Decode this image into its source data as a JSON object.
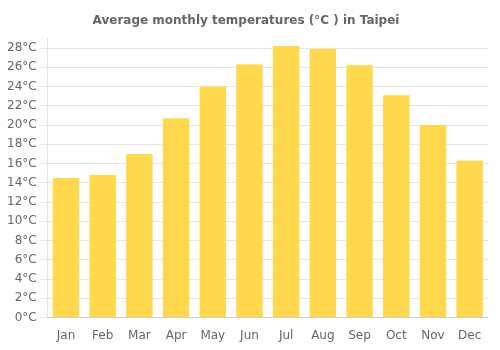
{
  "chart_data": {
    "type": "bar",
    "title": "Average monthly temperatures (°C ) in Taipei",
    "categories": [
      "Jan",
      "Feb",
      "Mar",
      "Apr",
      "May",
      "Jun",
      "Jul",
      "Aug",
      "Sep",
      "Oct",
      "Nov",
      "Dec"
    ],
    "values": [
      14.5,
      14.8,
      17.0,
      20.7,
      24.0,
      26.3,
      28.2,
      27.9,
      26.2,
      23.1,
      20.0,
      16.3
    ],
    "color": "#FFD84D",
    "ylim": [
      0,
      29
    ],
    "yticks": [
      {
        "value": 0,
        "label": "0°C"
      },
      {
        "value": 2,
        "label": "2°C"
      },
      {
        "value": 4,
        "label": "4°C"
      },
      {
        "value": 6,
        "label": "6°C"
      },
      {
        "value": 8,
        "label": "8°C"
      },
      {
        "value": 10,
        "label": "10°C"
      },
      {
        "value": 12,
        "label": "12°C"
      },
      {
        "value": 14,
        "label": "14°C"
      },
      {
        "value": 16,
        "label": "16°C"
      },
      {
        "value": 18,
        "label": "18°C"
      },
      {
        "value": 20,
        "label": "20°C"
      },
      {
        "value": 22,
        "label": "22°C"
      },
      {
        "value": 24,
        "label": "24°C"
      },
      {
        "value": 26,
        "label": "26°C"
      },
      {
        "value": 28,
        "label": "28°C"
      }
    ],
    "grid": true
  }
}
